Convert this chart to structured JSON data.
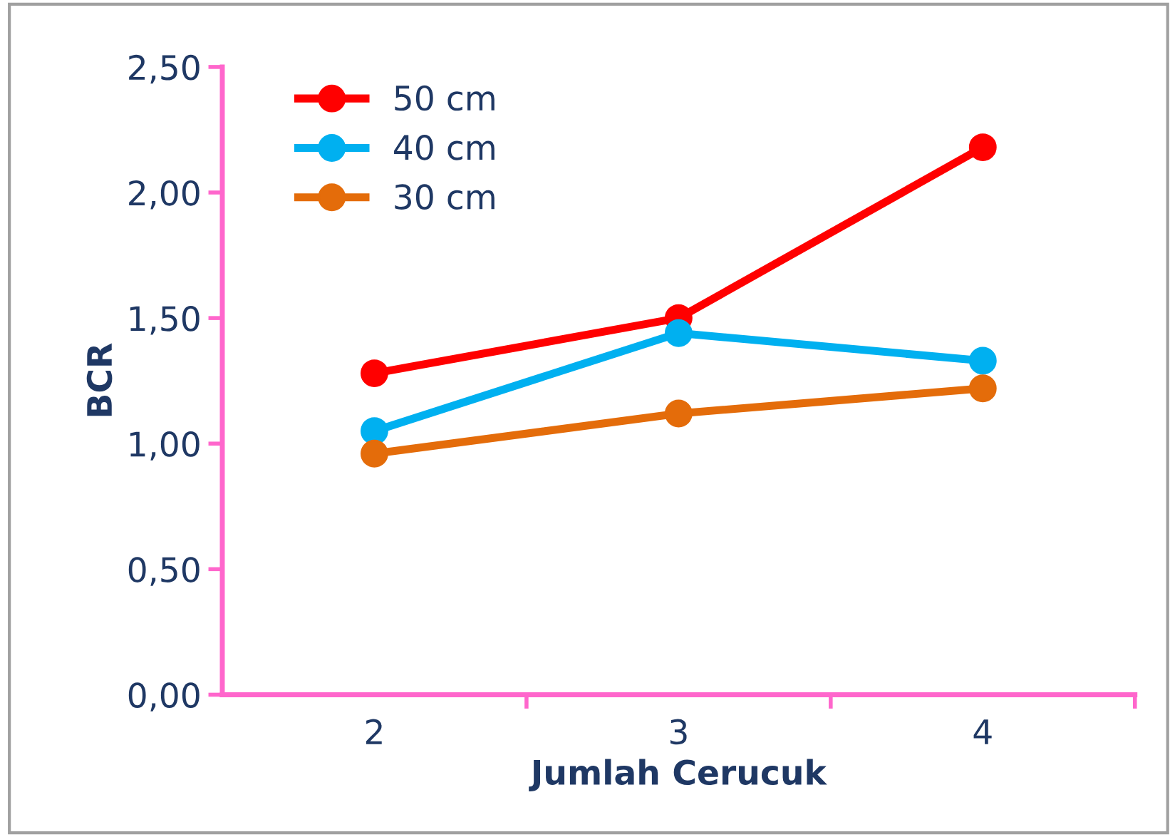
{
  "chart_data": {
    "type": "line",
    "xlabel": "Jumlah Cerucuk",
    "ylabel": "BCR",
    "x": [
      2,
      3,
      4
    ],
    "xlim": [
      1.5,
      4.5
    ],
    "xticks": [
      2,
      3,
      4,
      {
        "value": 2.5,
        "label": null
      },
      {
        "value": 3.5,
        "label": null
      },
      {
        "value": 4.5,
        "label": null
      }
    ],
    "series": [
      {
        "name": "50 cm",
        "color": "#ff0000",
        "values": [
          1.28,
          1.5,
          2.18
        ]
      },
      {
        "name": "40 cm",
        "color": "#00b0f0",
        "values": [
          1.05,
          1.44,
          1.33
        ]
      },
      {
        "name": "30 cm",
        "color": "#e46c0a",
        "values": [
          0.96,
          1.12,
          1.22
        ]
      }
    ],
    "ylim": [
      0,
      2.5
    ],
    "yticks": [
      {
        "value": 0,
        "label": "0,00"
      },
      {
        "value": 0.5,
        "label": "0,50"
      },
      {
        "value": 1,
        "label": "1,00"
      },
      {
        "value": 1.5,
        "label": "1,50"
      },
      {
        "value": 2,
        "label": "2,00"
      },
      {
        "value": 2.5,
        "label": "2,50"
      }
    ],
    "grid": false,
    "legend": "top left",
    "marker": "circle",
    "line_style": "solid"
  }
}
